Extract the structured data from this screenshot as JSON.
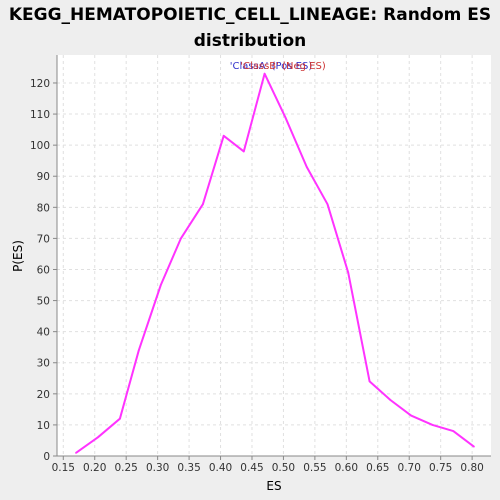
{
  "chart_data": {
    "type": "line",
    "title_line1": "KEGG_HEMATOPOIETIC_CELL_LINEAGE: Random ES",
    "title_line2": "distribution",
    "xlabel": "ES",
    "ylabel": "P(ES)",
    "xlim": [
      0.14,
      0.83
    ],
    "ylim": [
      0,
      129
    ],
    "x_ticks": [
      "0.15",
      "0.20",
      "0.25",
      "0.30",
      "0.35",
      "0.40",
      "0.45",
      "0.50",
      "0.55",
      "0.60",
      "0.65",
      "0.70",
      "0.75",
      "0.80"
    ],
    "y_ticks": [
      "0",
      "10",
      "20",
      "30",
      "40",
      "50",
      "60",
      "70",
      "80",
      "90",
      "100",
      "110",
      "120"
    ],
    "grid": true,
    "legend": {
      "placement": "top-center",
      "entries": [
        {
          "text": "'ClassA' (Pos ES)",
          "color": "#3333cc"
        },
        {
          "text": "'ClassB' (Neg ES)",
          "color": "#cc3333"
        }
      ]
    },
    "series": [
      {
        "color": "#ff33ff",
        "x": [
          0.17,
          0.205,
          0.24,
          0.27,
          0.305,
          0.337,
          0.372,
          0.405,
          0.437,
          0.47,
          0.503,
          0.537,
          0.57,
          0.603,
          0.637,
          0.67,
          0.703,
          0.737,
          0.77,
          0.803
        ],
        "y": [
          1,
          6,
          12,
          34,
          55,
          70,
          81,
          103,
          98,
          123,
          109,
          93,
          81,
          59,
          24,
          18,
          13,
          10,
          8,
          3
        ]
      }
    ]
  }
}
